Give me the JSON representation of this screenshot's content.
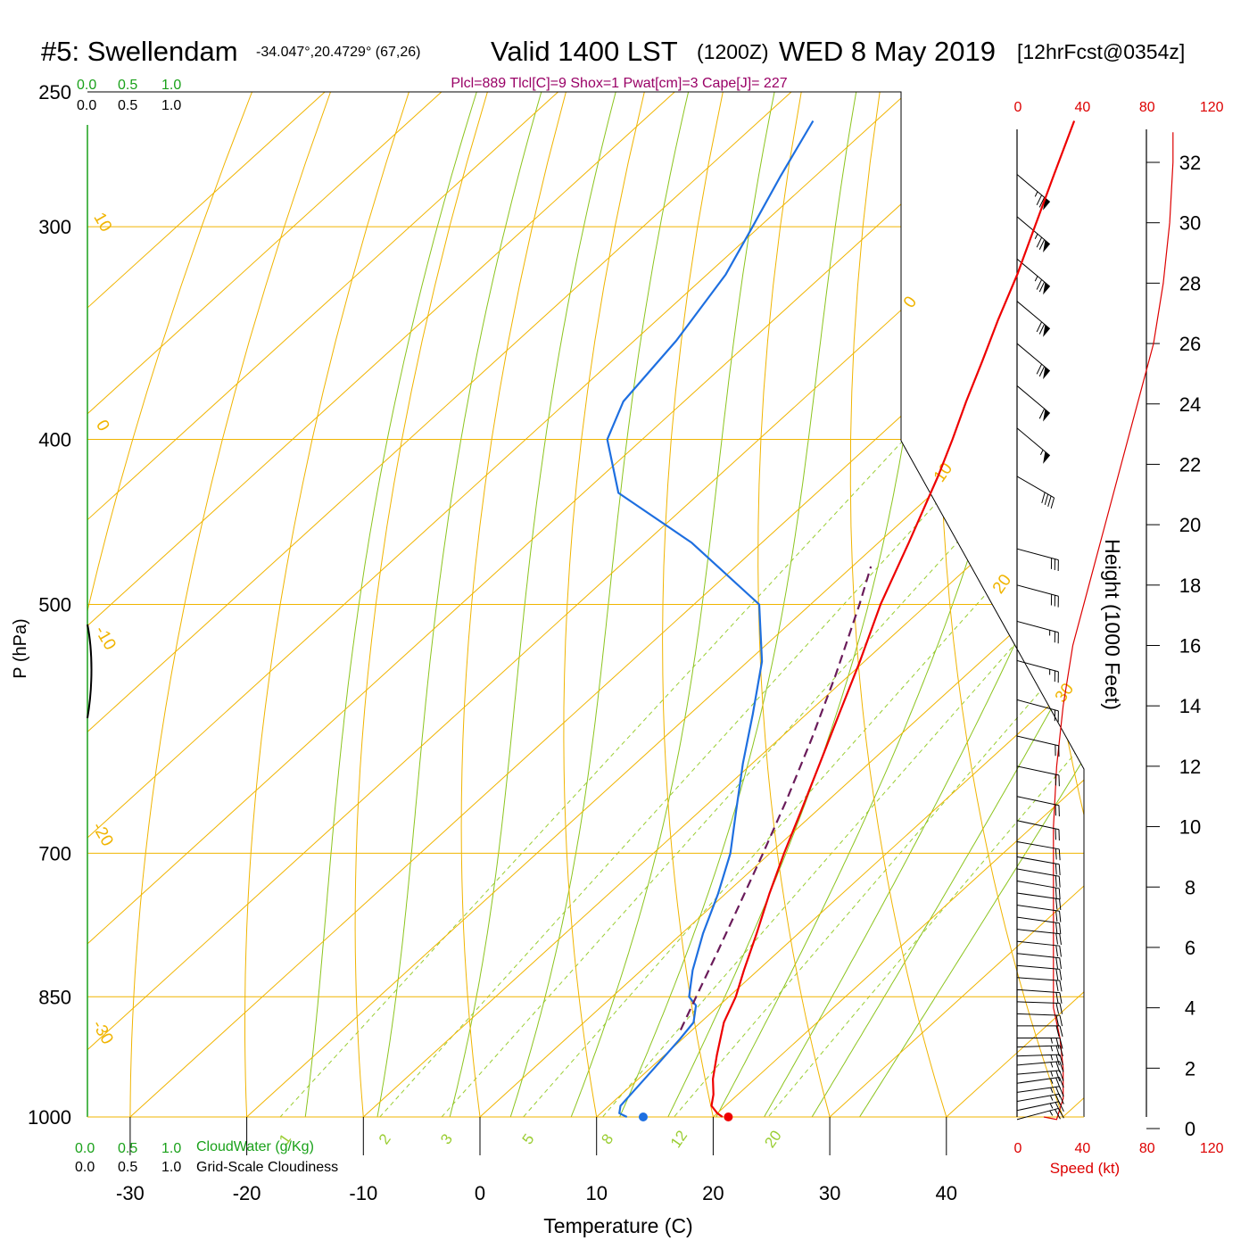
{
  "header": {
    "station": "#5: Swellendam",
    "coords": "-34.047°,20.4729° (67,26)",
    "valid": "Valid 1400 LST",
    "zulu": "(1200Z)",
    "date": "WED 8 May 2019",
    "forecast": "[12hrFcst@0354z]",
    "indices": "Plcl=889 Tlcl[C]=9 Shox=1 Pwat[cm]=3 Cape[J]= 227"
  },
  "colors": {
    "temperature": "#ee0000",
    "dewpoint": "#1e6fe0",
    "parcel": "#6a1b5a",
    "isotherm": "#f0b400",
    "moist_adiabat": "#8cc41e",
    "mixing_ratio": "#9acd32",
    "cloud": "#1aa11a",
    "indices": "#990066",
    "wind_speed": "#dd0000"
  },
  "chart_data": {
    "type": "skew-t",
    "xlabel": "Temperature (C)",
    "ylabel": "P (hPa)",
    "right_ylabel": "Height (1000 Feet)",
    "x_ticks": [
      "-30",
      "-20",
      "-10",
      "0",
      "10",
      "20",
      "30",
      "40"
    ],
    "x_tick_values": [
      -30,
      -20,
      -10,
      0,
      10,
      20,
      30,
      40
    ],
    "y_ticks": [
      "250",
      "300",
      "400",
      "500",
      "700",
      "850",
      "1000"
    ],
    "y_tick_values": [
      250,
      300,
      400,
      500,
      700,
      850,
      1000
    ],
    "height_ticks": [
      "0",
      "2",
      "4",
      "6",
      "8",
      "10",
      "12",
      "14",
      "16",
      "18",
      "20",
      "22",
      "24",
      "26",
      "28",
      "30",
      "32"
    ],
    "height_tick_values": [
      0,
      2,
      4,
      6,
      8,
      10,
      12,
      14,
      16,
      18,
      20,
      22,
      24,
      26,
      28,
      30,
      32
    ],
    "xlim": [
      -34,
      36
    ],
    "ylim": [
      1000,
      250
    ],
    "series": [
      {
        "key": "temperature",
        "p": [
          1000,
          995,
          985,
          970,
          950,
          920,
          880,
          850,
          820,
          780,
          740,
          700,
          660,
          620,
          580,
          540,
          500,
          460,
          420,
          400,
          380,
          360,
          340,
          320,
          300,
          280,
          260
        ],
        "t": [
          20.8,
          20.0,
          18.8,
          17.9,
          16.4,
          14.5,
          12.0,
          10.6,
          8.8,
          6.4,
          3.8,
          1.2,
          -1.4,
          -4.2,
          -7.2,
          -10.4,
          -14.0,
          -17.4,
          -21.2,
          -23.4,
          -25.8,
          -28.2,
          -30.8,
          -33.4,
          -36.4,
          -39.6,
          -43.0
        ]
      },
      {
        "key": "dewpoint",
        "p": [
          1000,
          995,
          985,
          970,
          940,
          900,
          880,
          860,
          850,
          820,
          780,
          740,
          700,
          660,
          620,
          580,
          540,
          500,
          460,
          430,
          400,
          380,
          350,
          320,
          300,
          280,
          260
        ],
        "t": [
          12.6,
          11.6,
          11.0,
          10.8,
          10.4,
          9.8,
          9.4,
          8.0,
          6.6,
          4.4,
          1.8,
          -0.6,
          -3.4,
          -7.0,
          -10.8,
          -14.6,
          -18.8,
          -24.4,
          -36.0,
          -47.0,
          -53.0,
          -55.2,
          -56.4,
          -58.4,
          -60.6,
          -63.0,
          -65.4
        ]
      },
      {
        "key": "parcel",
        "p": [
          889,
          850,
          800,
          750,
          700,
          650,
          600,
          550,
          500,
          475
        ],
        "t": [
          9.0,
          7.2,
          4.8,
          2.2,
          -0.6,
          -3.7,
          -7.2,
          -11.2,
          -15.8,
          -18.4
        ]
      }
    ],
    "surface_points": [
      {
        "key": "temperature",
        "p": 1000,
        "t": 21.3
      },
      {
        "key": "dewpoint",
        "p": 1000,
        "t": 14.0
      }
    ],
    "isotherm_labels": [
      "10",
      "0",
      "-10",
      "-20",
      "-30",
      "0",
      "10",
      "20",
      "30"
    ],
    "mixing_ratio_labels": [
      "1",
      "2",
      "3",
      "5",
      "8",
      "12",
      "20"
    ],
    "mixing_ratios_gkg": [
      1,
      2,
      3,
      5,
      8,
      12,
      20
    ],
    "wind_speed_ticks": [
      "0",
      "40",
      "80",
      "120"
    ],
    "wind_speed_tick_values": [
      0,
      40,
      80,
      120
    ],
    "wind_speed_axis_label": "Speed (kt)",
    "wind_speed_profile": {
      "height_kft": [
        0,
        0.3,
        1,
        2,
        3,
        4,
        5,
        6,
        8,
        10,
        12,
        14,
        16,
        18,
        20,
        22,
        24,
        26,
        28,
        30,
        32,
        33
      ],
      "speed_kt": [
        16,
        24,
        28,
        28,
        26,
        22,
        22,
        22,
        22,
        22,
        24,
        28,
        34,
        44,
        54,
        64,
        74,
        84,
        90,
        94,
        96,
        96
      ]
    },
    "wind_barbs": {
      "height_kft": [
        0.3,
        0.6,
        0.9,
        1.2,
        1.5,
        1.8,
        2.1,
        2.4,
        2.7,
        3.0,
        3.4,
        3.8,
        4.2,
        4.6,
        5.0,
        5.4,
        5.8,
        6.2,
        6.6,
        7.0,
        7.4,
        7.8,
        8.2,
        8.6,
        9.0,
        9.5,
        10.2,
        11.0,
        12.0,
        13.0,
        14.2,
        15.5,
        16.8,
        18.0,
        19.2,
        21.6,
        23.2,
        24.6,
        26.0,
        27.4,
        28.8,
        30.2,
        31.6
      ],
      "direction_deg": [
        255,
        258,
        260,
        262,
        262,
        265,
        265,
        268,
        268,
        270,
        270,
        272,
        272,
        274,
        274,
        275,
        276,
        276,
        276,
        278,
        278,
        278,
        280,
        280,
        280,
        280,
        282,
        282,
        282,
        283,
        285,
        285,
        285,
        285,
        285,
        300,
        310,
        310,
        310,
        310,
        310,
        310,
        310
      ],
      "speed_kt": [
        25,
        25,
        25,
        25,
        25,
        25,
        25,
        25,
        25,
        25,
        20,
        20,
        20,
        20,
        20,
        20,
        20,
        20,
        20,
        20,
        20,
        20,
        20,
        20,
        20,
        20,
        20,
        20,
        20,
        20,
        20,
        25,
        25,
        30,
        30,
        40,
        55,
        60,
        70,
        70,
        75,
        75,
        75
      ]
    }
  },
  "cloud_panel": {
    "top_labels_green": [
      "0.0",
      "0.5",
      "1.0"
    ],
    "top_labels_black": [
      "0.0",
      "0.5",
      "1.0"
    ],
    "bottom_labels_green": [
      "0.0",
      "0.5",
      "1.0"
    ],
    "bottom_labels_black": [
      "0.0",
      "0.5",
      "1.0"
    ],
    "cloudwater_label": "CloudWater (g/Kg)",
    "cloudiness_label": "Grid-Scale Cloudiness"
  }
}
